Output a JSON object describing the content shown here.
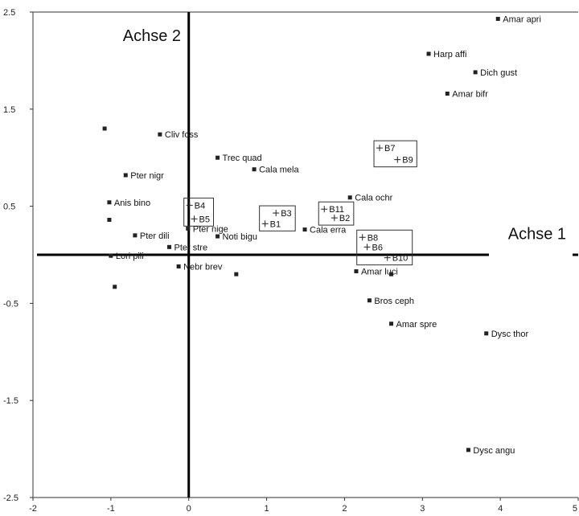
{
  "chart_data": {
    "type": "scatter",
    "title": "",
    "xlabel": "Achse 1",
    "ylabel": "Achse 2",
    "xlim": [
      -2,
      5
    ],
    "ylim": [
      -2.5,
      2.5
    ],
    "x_ticks": [
      -2,
      -1,
      0,
      1,
      2,
      3,
      4,
      5
    ],
    "y_ticks": [
      2.5,
      1.5,
      0.5,
      -0.5,
      -1.5,
      -2.5
    ],
    "x_tick_labels": [
      "-2",
      "-1",
      "0",
      "1",
      "2",
      "3",
      "4",
      "5"
    ],
    "y_tick_labels": [
      "2.5",
      "1.5",
      "0.5",
      "-0.5",
      "-1.5",
      "-2.5"
    ],
    "grid": false,
    "series": [
      {
        "name": "species",
        "marker": "square",
        "points": [
          {
            "label": "Amar apri",
            "x": 3.97,
            "y": 2.43
          },
          {
            "label": "Harp affi",
            "x": 3.08,
            "y": 2.07
          },
          {
            "label": "Dich gust",
            "x": 3.68,
            "y": 1.88
          },
          {
            "label": "Amar bifr",
            "x": 3.32,
            "y": 1.66
          },
          {
            "label": "Cliv foss",
            "x": -0.37,
            "y": 1.24
          },
          {
            "label": "Trec quad",
            "x": 0.37,
            "y": 1.0
          },
          {
            "label": "Cala mela",
            "x": 0.84,
            "y": 0.88
          },
          {
            "label": "Pter nigr",
            "x": -0.81,
            "y": 0.82
          },
          {
            "label": "Cala ochr",
            "x": 2.07,
            "y": 0.59
          },
          {
            "label": "Anis bino",
            "x": -1.02,
            "y": 0.54
          },
          {
            "label": "Pter nige",
            "x": -0.01,
            "y": 0.27
          },
          {
            "label": "Cala erra",
            "x": 1.49,
            "y": 0.26
          },
          {
            "label": "Pter dili",
            "x": -0.69,
            "y": 0.2
          },
          {
            "label": "Noti bigu",
            "x": 0.37,
            "y": 0.19
          },
          {
            "label": "Pter stre",
            "x": -0.25,
            "y": 0.08
          },
          {
            "label": "Lori pili",
            "x": -1.0,
            "y": -0.01
          },
          {
            "label": "Nebr brev",
            "x": -0.13,
            "y": -0.12
          },
          {
            "label": "Amar luci",
            "x": 2.15,
            "y": -0.17
          },
          {
            "label": "Bros ceph",
            "x": 2.32,
            "y": -0.47
          },
          {
            "label": "Amar spre",
            "x": 2.6,
            "y": -0.71
          },
          {
            "label": "Dysc thor",
            "x": 3.82,
            "y": -0.81
          },
          {
            "label": "Dysc angu",
            "x": 3.59,
            "y": -2.01
          },
          {
            "label": "",
            "x": -1.08,
            "y": 1.3
          },
          {
            "label": "",
            "x": -1.02,
            "y": 0.36
          },
          {
            "label": "",
            "x": -0.95,
            "y": -0.33
          },
          {
            "label": "",
            "x": 0.61,
            "y": -0.2
          },
          {
            "label": "",
            "x": 2.6,
            "y": -0.2
          }
        ]
      },
      {
        "name": "sites",
        "marker": "plus",
        "points": [
          {
            "label": "B4",
            "x": 0.01,
            "y": 0.51
          },
          {
            "label": "B5",
            "x": 0.07,
            "y": 0.37
          },
          {
            "label": "B3",
            "x": 1.12,
            "y": 0.43
          },
          {
            "label": "B1",
            "x": 0.98,
            "y": 0.32
          },
          {
            "label": "B11",
            "x": 1.74,
            "y": 0.47
          },
          {
            "label": "B2",
            "x": 1.87,
            "y": 0.38
          },
          {
            "label": "B7",
            "x": 2.45,
            "y": 1.1
          },
          {
            "label": "B9",
            "x": 2.68,
            "y": 0.98
          },
          {
            "label": "B8",
            "x": 2.23,
            "y": 0.18
          },
          {
            "label": "B6",
            "x": 2.29,
            "y": 0.08
          },
          {
            "label": "B10",
            "x": 2.55,
            "y": -0.03
          }
        ]
      }
    ],
    "groups": [
      [
        "B4",
        "B5"
      ],
      [
        "B3",
        "B1"
      ],
      [
        "B11",
        "B2"
      ],
      [
        "B7",
        "B9"
      ],
      [
        "B8",
        "B6",
        "B10"
      ]
    ]
  }
}
